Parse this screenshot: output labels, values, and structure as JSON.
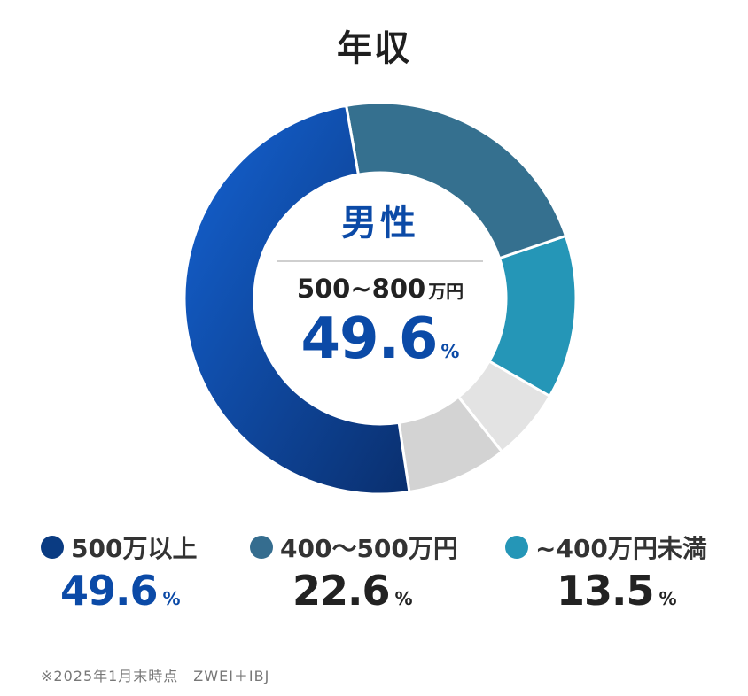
{
  "title": "年収",
  "center": {
    "gender": "男性",
    "range": "500~800",
    "range_unit": "万円",
    "value": "49.6",
    "percent_sign": "%"
  },
  "legend": [
    {
      "label": "500万以上",
      "value": "49.6",
      "percent_sign": "%",
      "dot_color": "#0a3b82",
      "value_color": "#0b4aa7"
    },
    {
      "label": "400〜500万円",
      "value": "22.6",
      "percent_sign": "%",
      "dot_color": "#356d8f",
      "value_color": "#222222"
    },
    {
      "label": "~400万円未満",
      "value": "13.5",
      "percent_sign": "%",
      "dot_color": "#2596b7",
      "value_color": "#222222"
    }
  ],
  "footnote": "※2025年1月末時点　ZWEI＋IBJ",
  "chart_data": {
    "type": "pie",
    "title": "年収",
    "donut": true,
    "categories": [
      "500万以上",
      "400〜500万円",
      "~400万円未満",
      "",
      ""
    ],
    "values": [
      49.6,
      22.6,
      13.5,
      6.0,
      8.3
    ],
    "colors": [
      "#0d52be",
      "#35708f",
      "#2596b7",
      "#e3e3e3",
      "#d3d3d3"
    ]
  }
}
